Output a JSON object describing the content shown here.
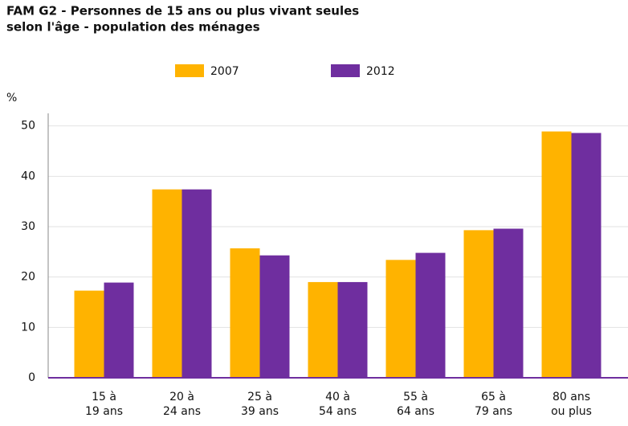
{
  "chart_data": {
    "type": "bar",
    "title": [
      "FAM G2 - Personnes de 15 ans ou plus vivant seules",
      "selon l'âge - population des ménages"
    ],
    "y_label": "%",
    "categories": [
      [
        "15 à",
        "19 ans"
      ],
      [
        "20 à",
        "24 ans"
      ],
      [
        "25 à",
        "39 ans"
      ],
      [
        "40 à",
        "54 ans"
      ],
      [
        "55 à",
        "64 ans"
      ],
      [
        "65 à",
        "79 ans"
      ],
      [
        "80 ans",
        "ou plus"
      ]
    ],
    "series": [
      {
        "name": "2007",
        "color": "#ffb300",
        "values": [
          17.3,
          37.4,
          25.7,
          19.0,
          23.4,
          29.3,
          48.9
        ]
      },
      {
        "name": "2012",
        "color": "#6f2e9f",
        "values": [
          18.9,
          37.4,
          24.3,
          19.0,
          24.8,
          29.6,
          48.6
        ]
      }
    ],
    "ylim": [
      0,
      52.5
    ],
    "yticks": [
      0,
      10,
      20,
      30,
      40,
      50
    ],
    "grid": true,
    "legend": "top"
  }
}
